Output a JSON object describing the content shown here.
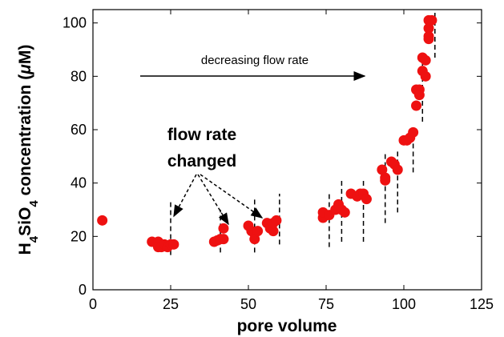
{
  "chart_data": {
    "type": "scatter",
    "x_label": "pore volume",
    "y_label_parts": [
      "H",
      "4",
      "SiO",
      "4",
      " concentration (",
      "μ",
      "M)"
    ],
    "annotations": [
      "decreasing flow rate",
      "flow rate",
      "changed"
    ],
    "color": "#ee1111",
    "xlim": [
      0,
      125
    ],
    "ylim": [
      0,
      105
    ],
    "xticks": [
      0,
      25,
      50,
      75,
      100,
      125
    ],
    "yticks": [
      0,
      20,
      40,
      60,
      80,
      100
    ],
    "x": [
      3,
      19,
      21,
      21,
      22,
      23,
      24,
      25,
      26,
      39,
      40,
      41,
      42,
      42,
      50,
      51,
      52,
      52,
      53,
      56,
      57,
      58,
      58,
      59,
      74,
      74,
      76,
      78,
      79,
      80,
      81,
      83,
      85,
      86,
      87,
      88,
      93,
      94,
      94,
      96,
      97,
      98,
      100,
      101,
      102,
      103,
      104,
      104,
      105,
      105,
      106,
      106,
      107,
      107,
      108,
      108,
      108,
      108,
      109
    ],
    "values": [
      26,
      18,
      18,
      16,
      16,
      17,
      16,
      17,
      17,
      18,
      18.5,
      19,
      19,
      23,
      24,
      22,
      21,
      19,
      22,
      25,
      23,
      22,
      25,
      26,
      27,
      29,
      28,
      30,
      32,
      30,
      29,
      36,
      35,
      36,
      36,
      34,
      45,
      42,
      41,
      48,
      47,
      45,
      56,
      56,
      57,
      59,
      69,
      75,
      75,
      73,
      87,
      82,
      86,
      80,
      101,
      98,
      95,
      94,
      101
    ],
    "dashed_lines": [
      [
        25,
        13,
        33
      ],
      [
        41,
        14,
        30
      ],
      [
        52,
        14,
        34
      ],
      [
        60,
        17,
        36
      ],
      [
        76,
        16,
        36
      ],
      [
        80,
        18,
        42
      ],
      [
        87,
        18,
        41
      ],
      [
        94,
        25,
        51
      ],
      [
        98,
        29,
        53
      ],
      [
        103,
        44,
        62
      ],
      [
        106,
        63,
        85
      ],
      [
        110,
        87,
        104
      ]
    ]
  }
}
